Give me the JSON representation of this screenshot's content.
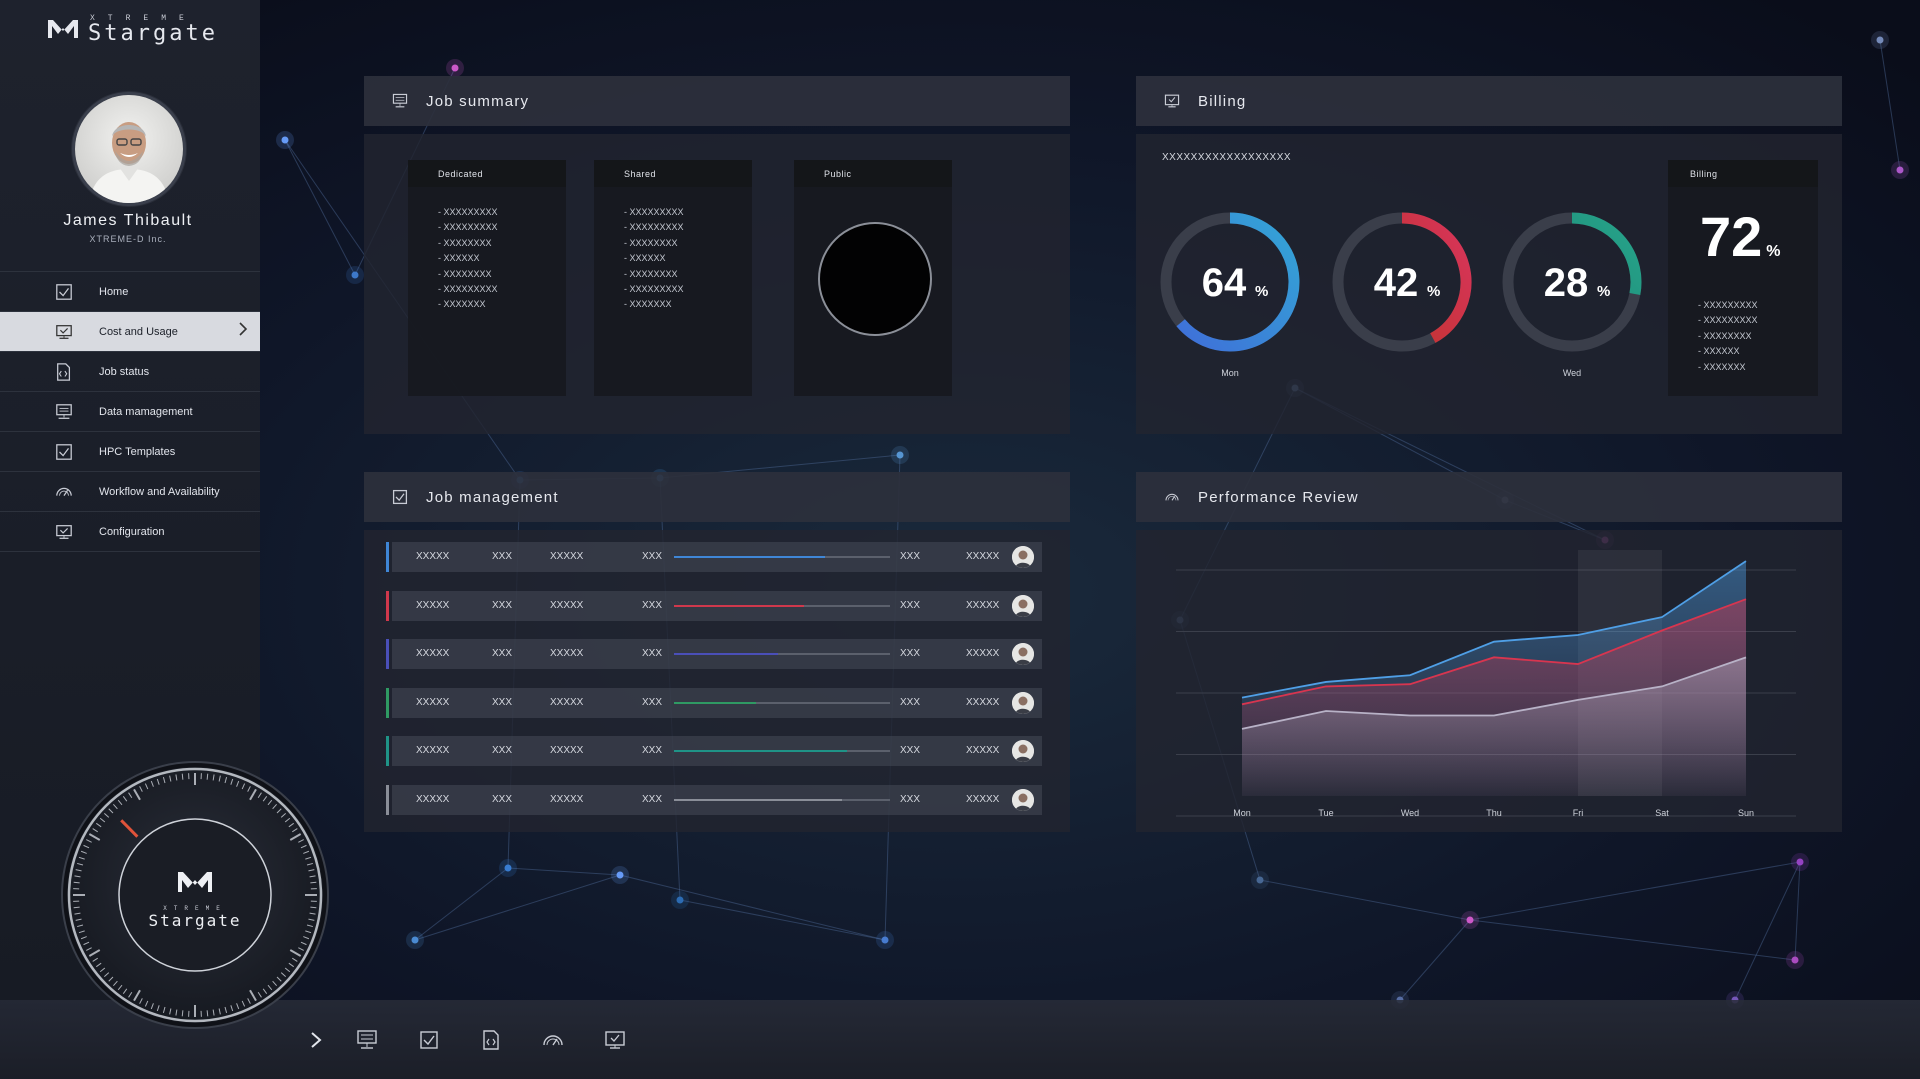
{
  "app": {
    "brand_sub": "XTREME",
    "brand_main": "Stargate"
  },
  "user": {
    "name": "James Thibault",
    "company": "XTREME-D Inc."
  },
  "nav": {
    "items": [
      {
        "label": "Home",
        "icon": "checkbox-icon",
        "active": false
      },
      {
        "label": "Cost and Usage",
        "icon": "monitor-check-icon",
        "active": true
      },
      {
        "label": "Job status",
        "icon": "document-code-icon",
        "active": false
      },
      {
        "label": "Data mamagement",
        "icon": "server-monitor-icon",
        "active": false
      },
      {
        "label": "HPC Templates",
        "icon": "checkbox-icon",
        "active": false
      },
      {
        "label": "Workflow and Availability",
        "icon": "gauge-icon",
        "active": false
      },
      {
        "label": "Configuration",
        "icon": "monitor-check-icon",
        "active": false
      }
    ]
  },
  "dial": {
    "brand_sub": "XTREME",
    "brand_main": "Stargate"
  },
  "job_summary": {
    "title": "Job summary",
    "columns": [
      {
        "header": "Dedicated",
        "items": [
          "- XXXXXXXXX",
          "- XXXXXXXXX",
          "- XXXXXXXX",
          "- XXXXXX",
          "- XXXXXXXX",
          "- XXXXXXXXX",
          "- XXXXXXX"
        ]
      },
      {
        "header": "Shared",
        "items": [
          "- XXXXXXXXX",
          "- XXXXXXXXX",
          "- XXXXXXXX",
          "- XXXXXX",
          "- XXXXXXXX",
          "- XXXXXXXXX",
          "- XXXXXXX"
        ]
      },
      {
        "header": "Public",
        "items": []
      }
    ]
  },
  "billing": {
    "title": "Billing",
    "subtitle": "XXXXXXXXXXXXXXXXXX",
    "donuts": [
      {
        "value": "64",
        "pct": 64,
        "label": "Mon",
        "color_a": "#3f6fd8",
        "color_b": "#33a6d6"
      },
      {
        "value": "42",
        "pct": 42,
        "label": "",
        "color_a": "#c2332f",
        "color_b": "#d8355c"
      },
      {
        "value": "28",
        "pct": 28,
        "label": "Wed",
        "color_a": "#1f8f7a",
        "color_b": "#27a48b"
      }
    ],
    "side": {
      "header": "Billing",
      "value": "72",
      "items": [
        "- XXXXXXXXX",
        "- XXXXXXXXX",
        "- XXXXXXXX",
        "- XXXXXX",
        "- XXXXXXX"
      ]
    },
    "percent_sign": "%"
  },
  "job_management": {
    "title": "Job management",
    "rows": [
      {
        "c1": "XXXXX",
        "c2": "XXX",
        "c3": "XXXXX",
        "c4": "XXX",
        "progress": 0.7,
        "color": "#3f86d6",
        "c5": "XXX",
        "c6": "XXXXX"
      },
      {
        "c1": "XXXXX",
        "c2": "XXX",
        "c3": "XXXXX",
        "c4": "XXX",
        "progress": 0.6,
        "color": "#d0384c",
        "c5": "XXX",
        "c6": "XXXXX"
      },
      {
        "c1": "XXXXX",
        "c2": "XXX",
        "c3": "XXXXX",
        "c4": "XXX",
        "progress": 0.48,
        "color": "#4a4fb8",
        "c5": "XXX",
        "c6": "XXXXX"
      },
      {
        "c1": "XXXXX",
        "c2": "XXX",
        "c3": "XXXXX",
        "c4": "XXX",
        "progress": 0.38,
        "color": "#2f9a63",
        "c5": "XXX",
        "c6": "XXXXX"
      },
      {
        "c1": "XXXXX",
        "c2": "XXX",
        "c3": "XXXXX",
        "c4": "XXX",
        "progress": 0.8,
        "color": "#1f9387",
        "c5": "XXX",
        "c6": "XXXXX"
      },
      {
        "c1": "XXXXX",
        "c2": "XXX",
        "c3": "XXXXX",
        "c4": "XXX",
        "progress": 0.78,
        "color": "#8a8e98",
        "c5": "XXX",
        "c6": "XXXXX"
      }
    ]
  },
  "performance": {
    "title": "Performance Review"
  },
  "chart_data": {
    "type": "area",
    "categories": [
      "Mon",
      "Tue",
      "Wed",
      "Thu",
      "Fri",
      "Sat",
      "Sun"
    ],
    "series": [
      {
        "color": "#4f9fe6",
        "values": [
          4.4,
          5.1,
          5.4,
          6.9,
          7.2,
          8.0,
          10.5
        ]
      },
      {
        "color": "#d8354f",
        "values": [
          4.1,
          4.9,
          5.0,
          6.2,
          5.9,
          7.4,
          8.8
        ]
      },
      {
        "color": "#b8b2c7",
        "values": [
          3.0,
          3.8,
          3.6,
          3.6,
          4.3,
          4.9,
          6.2
        ]
      }
    ],
    "ylim": [
      0,
      11
    ],
    "grid": true
  }
}
